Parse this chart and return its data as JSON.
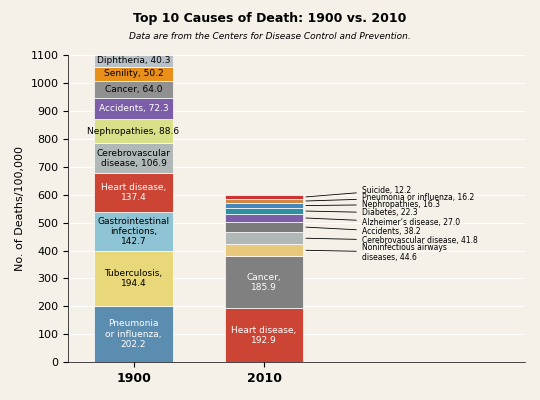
{
  "title": "Top 10 Causes of Death: 1900 vs. 2010",
  "subtitle": "Data are from the Centers for Disease Control and Prevention.",
  "ylabel": "No. of Deaths/100,000",
  "ylim": [
    0,
    1100
  ],
  "yticks": [
    0,
    100,
    200,
    300,
    400,
    500,
    600,
    700,
    800,
    900,
    1000,
    1100
  ],
  "background_color": "#f5f0e8",
  "bar_1900": [
    {
      "label": "Pneumonia\nor influenza,\n202.2",
      "value": 202.2,
      "color": "#5b8db0"
    },
    {
      "label": "Tuberculosis,\n194.4",
      "value": 194.4,
      "color": "#e8d87a"
    },
    {
      "label": "Gastrointestinal\ninfections,\n142.7",
      "value": 142.7,
      "color": "#8ec4d4"
    },
    {
      "label": "Heart disease,\n137.4",
      "value": 137.4,
      "color": "#cc4433"
    },
    {
      "label": "Cerebrovascular\ndisease, 106.9",
      "value": 106.9,
      "color": "#b0b8b8"
    },
    {
      "label": "Nephropathies, 88.6",
      "value": 88.6,
      "color": "#d9e08a"
    },
    {
      "label": "Accidents, 72.3",
      "value": 72.3,
      "color": "#7b5ea7"
    },
    {
      "label": "Cancer, 64.0",
      "value": 64.0,
      "color": "#909090"
    },
    {
      "label": "Senility, 50.2",
      "value": 50.2,
      "color": "#e8901a"
    },
    {
      "label": "Diphtheria, 40.3",
      "value": 40.3,
      "color": "#b8c0c8"
    }
  ],
  "bar_2010": [
    {
      "label": "Heart disease,\n192.9",
      "value": 192.9,
      "color": "#cc4433"
    },
    {
      "label": "Cancer,\n185.9",
      "value": 185.9,
      "color": "#808080"
    },
    {
      "label": "Noninfectious airways\ndiseases, 44.6",
      "value": 44.6,
      "color": "#e8c87a"
    },
    {
      "label": "Cerebrovascular disease, 41.8",
      "value": 41.8,
      "color": "#b0b8b8"
    },
    {
      "label": "Accidents, 38.2",
      "value": 38.2,
      "color": "#7b7b7b"
    },
    {
      "label": "Alzheimer's disease, 27.0",
      "value": 27.0,
      "color": "#7b5ea7"
    },
    {
      "label": "Diabetes, 22.3",
      "value": 22.3,
      "color": "#2e8fa0"
    },
    {
      "label": "Nephropathies, 16.3",
      "value": 16.3,
      "color": "#4488bb"
    },
    {
      "label": "Pneumonia or influenza, 16.2",
      "value": 16.2,
      "color": "#cc8844"
    },
    {
      "label": "Suicide, 12.2",
      "value": 12.2,
      "color": "#cc3333"
    }
  ],
  "annotation_2010": [
    "Suicide, 12.2",
    "Pneumonia or influenza, 16.2",
    "Nephropathies, 16.3",
    "Diabetes, 22.3",
    "Alzheimer’s disease, 27.0",
    "Accidents, 38.2",
    "Cerebrovascular disease, 41.8",
    "Noninfectious airways\ndiseases, 44.6"
  ]
}
